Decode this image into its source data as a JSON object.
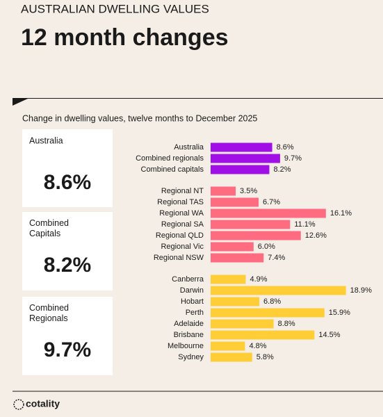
{
  "header": {
    "eyebrow": "AUSTRALIAN DWELLING VALUES",
    "title": "12 month changes"
  },
  "subtitle": "Change in dwelling values, twelve months to December 2025",
  "cards": [
    {
      "label": "Australia",
      "value": "8.6%"
    },
    {
      "label": "Combined Capitals",
      "value": "8.2%"
    },
    {
      "label": "Combined Regionals",
      "value": "9.7%"
    }
  ],
  "chart_data": {
    "type": "bar",
    "orientation": "horizontal",
    "series": [
      {
        "color": "#a00fe6",
        "categories": [
          "Australia",
          "Combined regionals",
          "Combined capitals"
        ],
        "values": [
          8.6,
          9.7,
          8.2
        ],
        "value_labels": [
          "8.6%",
          "9.7%",
          "8.2%"
        ]
      },
      {
        "color": "#ff6b80",
        "categories": [
          "Regional NT",
          "Regional TAS",
          "Regional WA",
          "Regional SA",
          "Regional QLD",
          "Regional Vic",
          "Regional NSW"
        ],
        "values": [
          3.5,
          6.7,
          16.1,
          11.1,
          12.6,
          6.0,
          7.4
        ],
        "value_labels": [
          "3.5%",
          "6.7%",
          "16.1%",
          "11.1%",
          "12.6%",
          "6.0%",
          "7.4%"
        ]
      },
      {
        "color": "#ffcd35",
        "categories": [
          "Canberra",
          "Darwin",
          "Hobart",
          "Perth",
          "Adelaide",
          "Brisbane",
          "Melbourne",
          "Sydney"
        ],
        "values": [
          4.9,
          18.9,
          6.8,
          15.9,
          8.8,
          14.5,
          4.8,
          5.8
        ],
        "value_labels": [
          "4.9%",
          "18.9%",
          "6.8%",
          "15.9%",
          "8.8%",
          "14.5%",
          "4.8%",
          "5.8%"
        ]
      }
    ]
  },
  "logo": "cotality"
}
